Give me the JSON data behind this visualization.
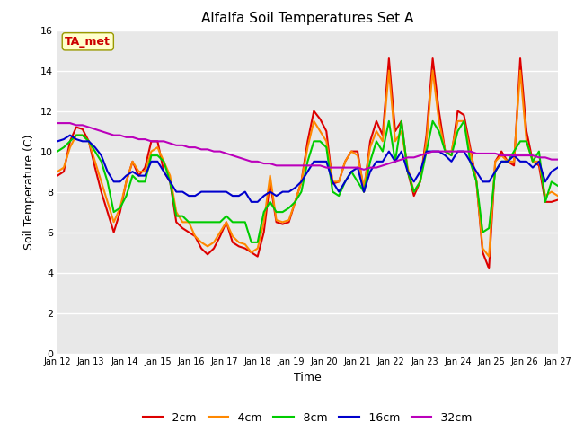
{
  "title": "Alfalfa Soil Temperatures Set A",
  "xlabel": "Time",
  "ylabel": "Soil Temperature (C)",
  "ylim": [
    0,
    16
  ],
  "yticks": [
    0,
    2,
    4,
    6,
    8,
    10,
    12,
    14,
    16
  ],
  "plot_bg_color": "#e8e8e8",
  "annotation_text": "TA_met",
  "annotation_color": "#cc0000",
  "annotation_bg": "#ffffcc",
  "legend_labels": [
    "-2cm",
    "-4cm",
    "-8cm",
    "-16cm",
    "-32cm"
  ],
  "line_colors": [
    "#dd0000",
    "#ff8800",
    "#00cc00",
    "#0000cc",
    "#bb00bb"
  ],
  "xtick_labels": [
    "Jan 12",
    "Jan 13",
    "Jan 14",
    "Jan 15",
    "Jan 16",
    "Jan 17",
    "Jan 18",
    "Jan 19",
    "Jan 20",
    "Jan 21",
    "Jan 22",
    "Jan 23",
    "Jan 24",
    "Jan 25",
    "Jan 26",
    "Jan 27"
  ],
  "y_2cm": [
    8.8,
    9.0,
    10.5,
    11.2,
    11.1,
    10.5,
    9.2,
    8.0,
    7.0,
    6.0,
    7.0,
    8.5,
    9.5,
    8.8,
    9.2,
    10.5,
    10.5,
    9.0,
    8.5,
    6.5,
    6.2,
    6.0,
    5.8,
    5.2,
    4.9,
    5.2,
    5.8,
    6.5,
    5.5,
    5.3,
    5.2,
    5.0,
    4.8,
    6.0,
    8.5,
    6.5,
    6.4,
    6.5,
    7.5,
    8.5,
    10.5,
    12.0,
    11.6,
    11.0,
    8.4,
    8.5,
    9.5,
    10.0,
    10.0,
    8.0,
    10.5,
    11.5,
    10.8,
    14.6,
    11.0,
    11.5,
    9.0,
    7.8,
    8.5,
    10.8,
    14.6,
    12.0,
    10.0,
    9.8,
    12.0,
    11.8,
    10.2,
    8.5,
    5.0,
    4.2,
    9.5,
    10.0,
    9.5,
    9.3,
    14.6,
    11.0,
    9.5,
    9.3,
    7.5,
    7.5,
    7.6
  ],
  "y_4cm": [
    9.0,
    9.2,
    10.2,
    10.8,
    10.8,
    10.5,
    9.5,
    8.5,
    7.5,
    6.5,
    7.2,
    8.5,
    9.5,
    9.0,
    9.0,
    10.0,
    10.2,
    9.5,
    8.8,
    7.0,
    6.5,
    6.5,
    5.8,
    5.5,
    5.3,
    5.5,
    6.0,
    6.5,
    5.8,
    5.5,
    5.4,
    5.0,
    5.2,
    6.5,
    8.8,
    6.6,
    6.5,
    6.6,
    7.5,
    8.5,
    10.2,
    11.5,
    11.0,
    10.5,
    8.5,
    8.5,
    9.5,
    10.0,
    9.8,
    8.2,
    10.2,
    11.0,
    10.5,
    14.0,
    10.5,
    11.0,
    9.2,
    8.0,
    8.5,
    10.5,
    14.0,
    11.5,
    10.0,
    10.0,
    11.5,
    11.5,
    10.0,
    8.5,
    5.2,
    4.8,
    9.5,
    9.8,
    9.5,
    9.5,
    14.0,
    10.5,
    9.5,
    9.5,
    7.8,
    8.0,
    7.8
  ],
  "y_8cm": [
    10.0,
    10.2,
    10.5,
    10.8,
    10.8,
    10.5,
    10.0,
    9.5,
    8.5,
    7.0,
    7.2,
    7.8,
    8.8,
    8.5,
    8.5,
    9.8,
    9.8,
    9.5,
    8.5,
    6.8,
    6.8,
    6.5,
    6.5,
    6.5,
    6.5,
    6.5,
    6.5,
    6.8,
    6.5,
    6.5,
    6.5,
    5.5,
    5.5,
    7.0,
    7.5,
    7.0,
    7.0,
    7.2,
    7.5,
    8.0,
    9.5,
    10.5,
    10.5,
    10.2,
    8.0,
    7.8,
    8.5,
    9.0,
    8.5,
    8.0,
    9.5,
    10.5,
    10.0,
    11.5,
    9.5,
    11.5,
    9.0,
    8.0,
    8.5,
    10.0,
    11.5,
    11.0,
    10.0,
    9.8,
    11.0,
    11.5,
    9.5,
    8.5,
    6.0,
    6.2,
    9.0,
    9.5,
    9.5,
    10.0,
    10.5,
    10.5,
    9.5,
    10.0,
    7.5,
    8.5,
    8.3
  ],
  "y_16cm": [
    10.5,
    10.6,
    10.8,
    10.6,
    10.5,
    10.5,
    10.2,
    9.8,
    9.0,
    8.5,
    8.5,
    8.8,
    9.0,
    8.8,
    8.8,
    9.5,
    9.5,
    9.0,
    8.5,
    8.0,
    8.0,
    7.8,
    7.8,
    8.0,
    8.0,
    8.0,
    8.0,
    8.0,
    7.8,
    7.8,
    8.0,
    7.5,
    7.5,
    7.8,
    8.0,
    7.8,
    8.0,
    8.0,
    8.2,
    8.5,
    9.0,
    9.5,
    9.5,
    9.5,
    8.5,
    8.0,
    8.5,
    9.0,
    9.2,
    8.0,
    9.0,
    9.5,
    9.5,
    10.0,
    9.5,
    10.0,
    9.0,
    8.5,
    9.0,
    10.0,
    10.0,
    10.0,
    9.8,
    9.5,
    10.0,
    10.0,
    9.5,
    9.0,
    8.5,
    8.5,
    9.0,
    9.5,
    9.5,
    9.8,
    9.5,
    9.5,
    9.2,
    9.5,
    8.5,
    9.0,
    9.2
  ],
  "y_32cm": [
    11.4,
    11.4,
    11.4,
    11.3,
    11.3,
    11.2,
    11.1,
    11.0,
    10.9,
    10.8,
    10.8,
    10.7,
    10.7,
    10.6,
    10.6,
    10.5,
    10.5,
    10.5,
    10.4,
    10.3,
    10.3,
    10.2,
    10.2,
    10.1,
    10.1,
    10.0,
    10.0,
    9.9,
    9.8,
    9.7,
    9.6,
    9.5,
    9.5,
    9.4,
    9.4,
    9.3,
    9.3,
    9.3,
    9.3,
    9.3,
    9.3,
    9.3,
    9.3,
    9.2,
    9.2,
    9.2,
    9.2,
    9.2,
    9.2,
    9.1,
    9.2,
    9.2,
    9.3,
    9.4,
    9.5,
    9.6,
    9.7,
    9.7,
    9.8,
    9.9,
    10.0,
    10.0,
    10.0,
    10.0,
    10.0,
    10.0,
    10.0,
    9.9,
    9.9,
    9.9,
    9.9,
    9.8,
    9.8,
    9.8,
    9.8,
    9.8,
    9.8,
    9.7,
    9.7,
    9.6,
    9.6
  ]
}
